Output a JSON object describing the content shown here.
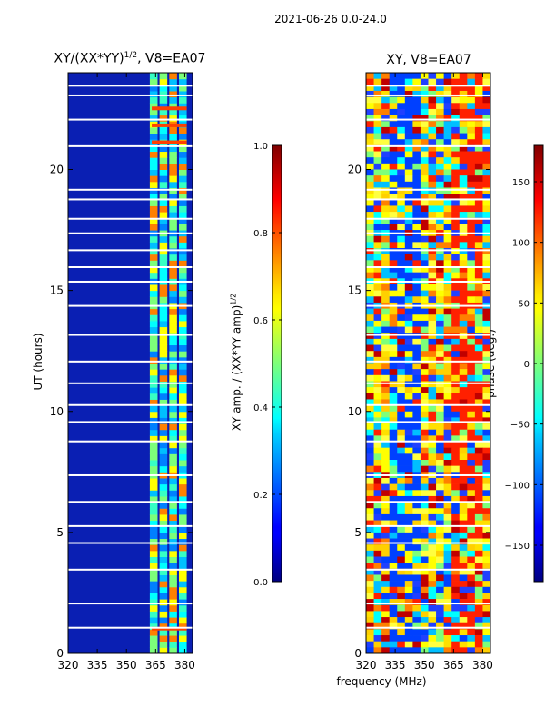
{
  "suptitle": "2021-06-26 0.0-24.0",
  "xlabel": "frequency (MHz)",
  "chart_data": [
    {
      "type": "heatmap",
      "title": "XY/(XX*YY)",
      "title_exponent": "1/2",
      "title_suffix": ", V8=EA07",
      "xlabel": "",
      "ylabel": "UT (hours)",
      "xlim": [
        320,
        384
      ],
      "ylim": [
        0,
        24
      ],
      "xticks": [
        320,
        335,
        350,
        365,
        380
      ],
      "yticks": [
        0,
        5,
        10,
        15,
        20
      ],
      "colorbar": {
        "label": "XY amp. / (XX*YY amp)",
        "label_exponent": "1/2",
        "range": [
          0.0,
          1.0
        ],
        "ticks": [
          "0.0",
          "0.2",
          "0.4",
          "0.6",
          "0.8",
          "1.0"
        ],
        "tick_values": [
          0.0,
          0.2,
          0.4,
          0.6,
          0.8,
          1.0
        ]
      }
    },
    {
      "type": "heatmap",
      "title": "XY, V8=EA07",
      "xlabel": "frequency (MHz)",
      "ylabel": "",
      "xlim": [
        320,
        384
      ],
      "ylim": [
        0,
        24
      ],
      "xticks": [
        320,
        335,
        350,
        365,
        380
      ],
      "yticks": [
        0,
        5,
        10,
        15,
        20
      ],
      "colorbar": {
        "label": "phase (deg.)",
        "range": [
          -180,
          180
        ],
        "ticks": [
          "150",
          "100",
          "50",
          "0",
          "−50",
          "−100",
          "−150"
        ],
        "tick_values": [
          150,
          100,
          50,
          0,
          -50,
          -100,
          -150
        ]
      }
    }
  ]
}
